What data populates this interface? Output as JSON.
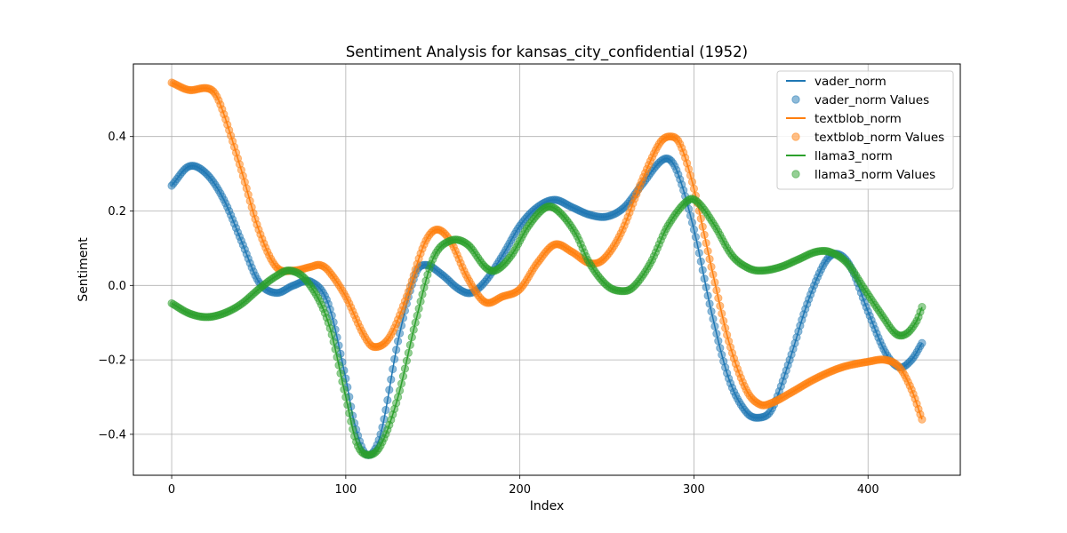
{
  "chart_data": {
    "type": "line",
    "title": "Sentiment Analysis for kansas_city_confidential (1952)",
    "xlabel": "Index",
    "ylabel": "Sentiment",
    "xlim": [
      -22,
      453
    ],
    "ylim": [
      -0.51,
      0.595
    ],
    "x_ticks": [
      0,
      100,
      200,
      300,
      400
    ],
    "x_tick_labels": [
      "0",
      "100",
      "200",
      "300",
      "400"
    ],
    "y_ticks": [
      -0.4,
      -0.2,
      0.0,
      0.2,
      0.4
    ],
    "y_tick_labels": [
      "−0.4",
      "−0.2",
      "0.0",
      "0.2",
      "0.4"
    ],
    "grid": true,
    "legend_position": "top-right",
    "x_range": [
      0,
      431
    ],
    "series": [
      {
        "name": "vader_norm",
        "points_label": "vader_norm Values",
        "color": "#1f77b4",
        "knots": [
          [
            0,
            0.268
          ],
          [
            10,
            0.32
          ],
          [
            20,
            0.3
          ],
          [
            30,
            0.23
          ],
          [
            40,
            0.12
          ],
          [
            50,
            0.01
          ],
          [
            60,
            -0.02
          ],
          [
            70,
            0.0
          ],
          [
            80,
            0.01
          ],
          [
            90,
            -0.05
          ],
          [
            100,
            -0.25
          ],
          [
            105,
            -0.37
          ],
          [
            112,
            -0.455
          ],
          [
            120,
            -0.4
          ],
          [
            130,
            -0.15
          ],
          [
            140,
            0.03
          ],
          [
            146,
            0.055
          ],
          [
            155,
            0.03
          ],
          [
            165,
            -0.01
          ],
          [
            172,
            -0.02
          ],
          [
            180,
            0.01
          ],
          [
            190,
            0.08
          ],
          [
            200,
            0.16
          ],
          [
            210,
            0.21
          ],
          [
            220,
            0.23
          ],
          [
            230,
            0.21
          ],
          [
            240,
            0.19
          ],
          [
            250,
            0.185
          ],
          [
            260,
            0.21
          ],
          [
            270,
            0.27
          ],
          [
            283,
            0.34
          ],
          [
            290,
            0.31
          ],
          [
            300,
            0.15
          ],
          [
            310,
            -0.07
          ],
          [
            320,
            -0.25
          ],
          [
            330,
            -0.34
          ],
          [
            338,
            -0.355
          ],
          [
            345,
            -0.33
          ],
          [
            355,
            -0.2
          ],
          [
            365,
            -0.05
          ],
          [
            375,
            0.06
          ],
          [
            382,
            0.085
          ],
          [
            390,
            0.05
          ],
          [
            400,
            -0.07
          ],
          [
            410,
            -0.18
          ],
          [
            418,
            -0.22
          ],
          [
            425,
            -0.2
          ],
          [
            431,
            -0.155
          ]
        ]
      },
      {
        "name": "textblob_norm",
        "points_label": "textblob_norm Values",
        "color": "#ff7f0e",
        "knots": [
          [
            0,
            0.545
          ],
          [
            10,
            0.525
          ],
          [
            20,
            0.53
          ],
          [
            25,
            0.515
          ],
          [
            30,
            0.46
          ],
          [
            40,
            0.31
          ],
          [
            50,
            0.15
          ],
          [
            60,
            0.05
          ],
          [
            70,
            0.04
          ],
          [
            80,
            0.05
          ],
          [
            85,
            0.055
          ],
          [
            90,
            0.04
          ],
          [
            100,
            -0.03
          ],
          [
            110,
            -0.13
          ],
          [
            116,
            -0.165
          ],
          [
            125,
            -0.14
          ],
          [
            135,
            -0.03
          ],
          [
            145,
            0.11
          ],
          [
            152,
            0.15
          ],
          [
            160,
            0.12
          ],
          [
            170,
            0.02
          ],
          [
            180,
            -0.045
          ],
          [
            190,
            -0.03
          ],
          [
            200,
            -0.01
          ],
          [
            210,
            0.06
          ],
          [
            220,
            0.11
          ],
          [
            230,
            0.09
          ],
          [
            240,
            0.06
          ],
          [
            248,
            0.07
          ],
          [
            258,
            0.14
          ],
          [
            270,
            0.28
          ],
          [
            280,
            0.38
          ],
          [
            286,
            0.4
          ],
          [
            292,
            0.38
          ],
          [
            300,
            0.26
          ],
          [
            310,
            0.05
          ],
          [
            320,
            -0.15
          ],
          [
            330,
            -0.28
          ],
          [
            338,
            -0.32
          ],
          [
            345,
            -0.315
          ],
          [
            355,
            -0.29
          ],
          [
            370,
            -0.25
          ],
          [
            385,
            -0.22
          ],
          [
            400,
            -0.205
          ],
          [
            410,
            -0.2
          ],
          [
            418,
            -0.22
          ],
          [
            425,
            -0.28
          ],
          [
            431,
            -0.36
          ]
        ]
      },
      {
        "name": "llama3_norm",
        "points_label": "llama3_norm Values",
        "color": "#2ca02c",
        "knots": [
          [
            0,
            -0.048
          ],
          [
            10,
            -0.075
          ],
          [
            20,
            -0.085
          ],
          [
            30,
            -0.075
          ],
          [
            40,
            -0.05
          ],
          [
            50,
            -0.01
          ],
          [
            60,
            0.025
          ],
          [
            68,
            0.04
          ],
          [
            78,
            0.01
          ],
          [
            90,
            -0.1
          ],
          [
            100,
            -0.3
          ],
          [
            106,
            -0.42
          ],
          [
            112,
            -0.455
          ],
          [
            120,
            -0.43
          ],
          [
            130,
            -0.3
          ],
          [
            140,
            -0.1
          ],
          [
            150,
            0.07
          ],
          [
            160,
            0.12
          ],
          [
            170,
            0.11
          ],
          [
            180,
            0.05
          ],
          [
            186,
            0.04
          ],
          [
            195,
            0.08
          ],
          [
            205,
            0.16
          ],
          [
            215,
            0.21
          ],
          [
            222,
            0.2
          ],
          [
            232,
            0.14
          ],
          [
            240,
            0.06
          ],
          [
            250,
            0.0
          ],
          [
            258,
            -0.015
          ],
          [
            265,
            -0.005
          ],
          [
            275,
            0.06
          ],
          [
            285,
            0.16
          ],
          [
            297,
            0.23
          ],
          [
            303,
            0.22
          ],
          [
            312,
            0.16
          ],
          [
            322,
            0.08
          ],
          [
            332,
            0.045
          ],
          [
            340,
            0.04
          ],
          [
            350,
            0.05
          ],
          [
            360,
            0.07
          ],
          [
            370,
            0.09
          ],
          [
            378,
            0.09
          ],
          [
            388,
            0.06
          ],
          [
            398,
            -0.01
          ],
          [
            408,
            -0.08
          ],
          [
            416,
            -0.13
          ],
          [
            422,
            -0.13
          ],
          [
            428,
            -0.095
          ],
          [
            431,
            -0.058
          ]
        ]
      }
    ]
  }
}
